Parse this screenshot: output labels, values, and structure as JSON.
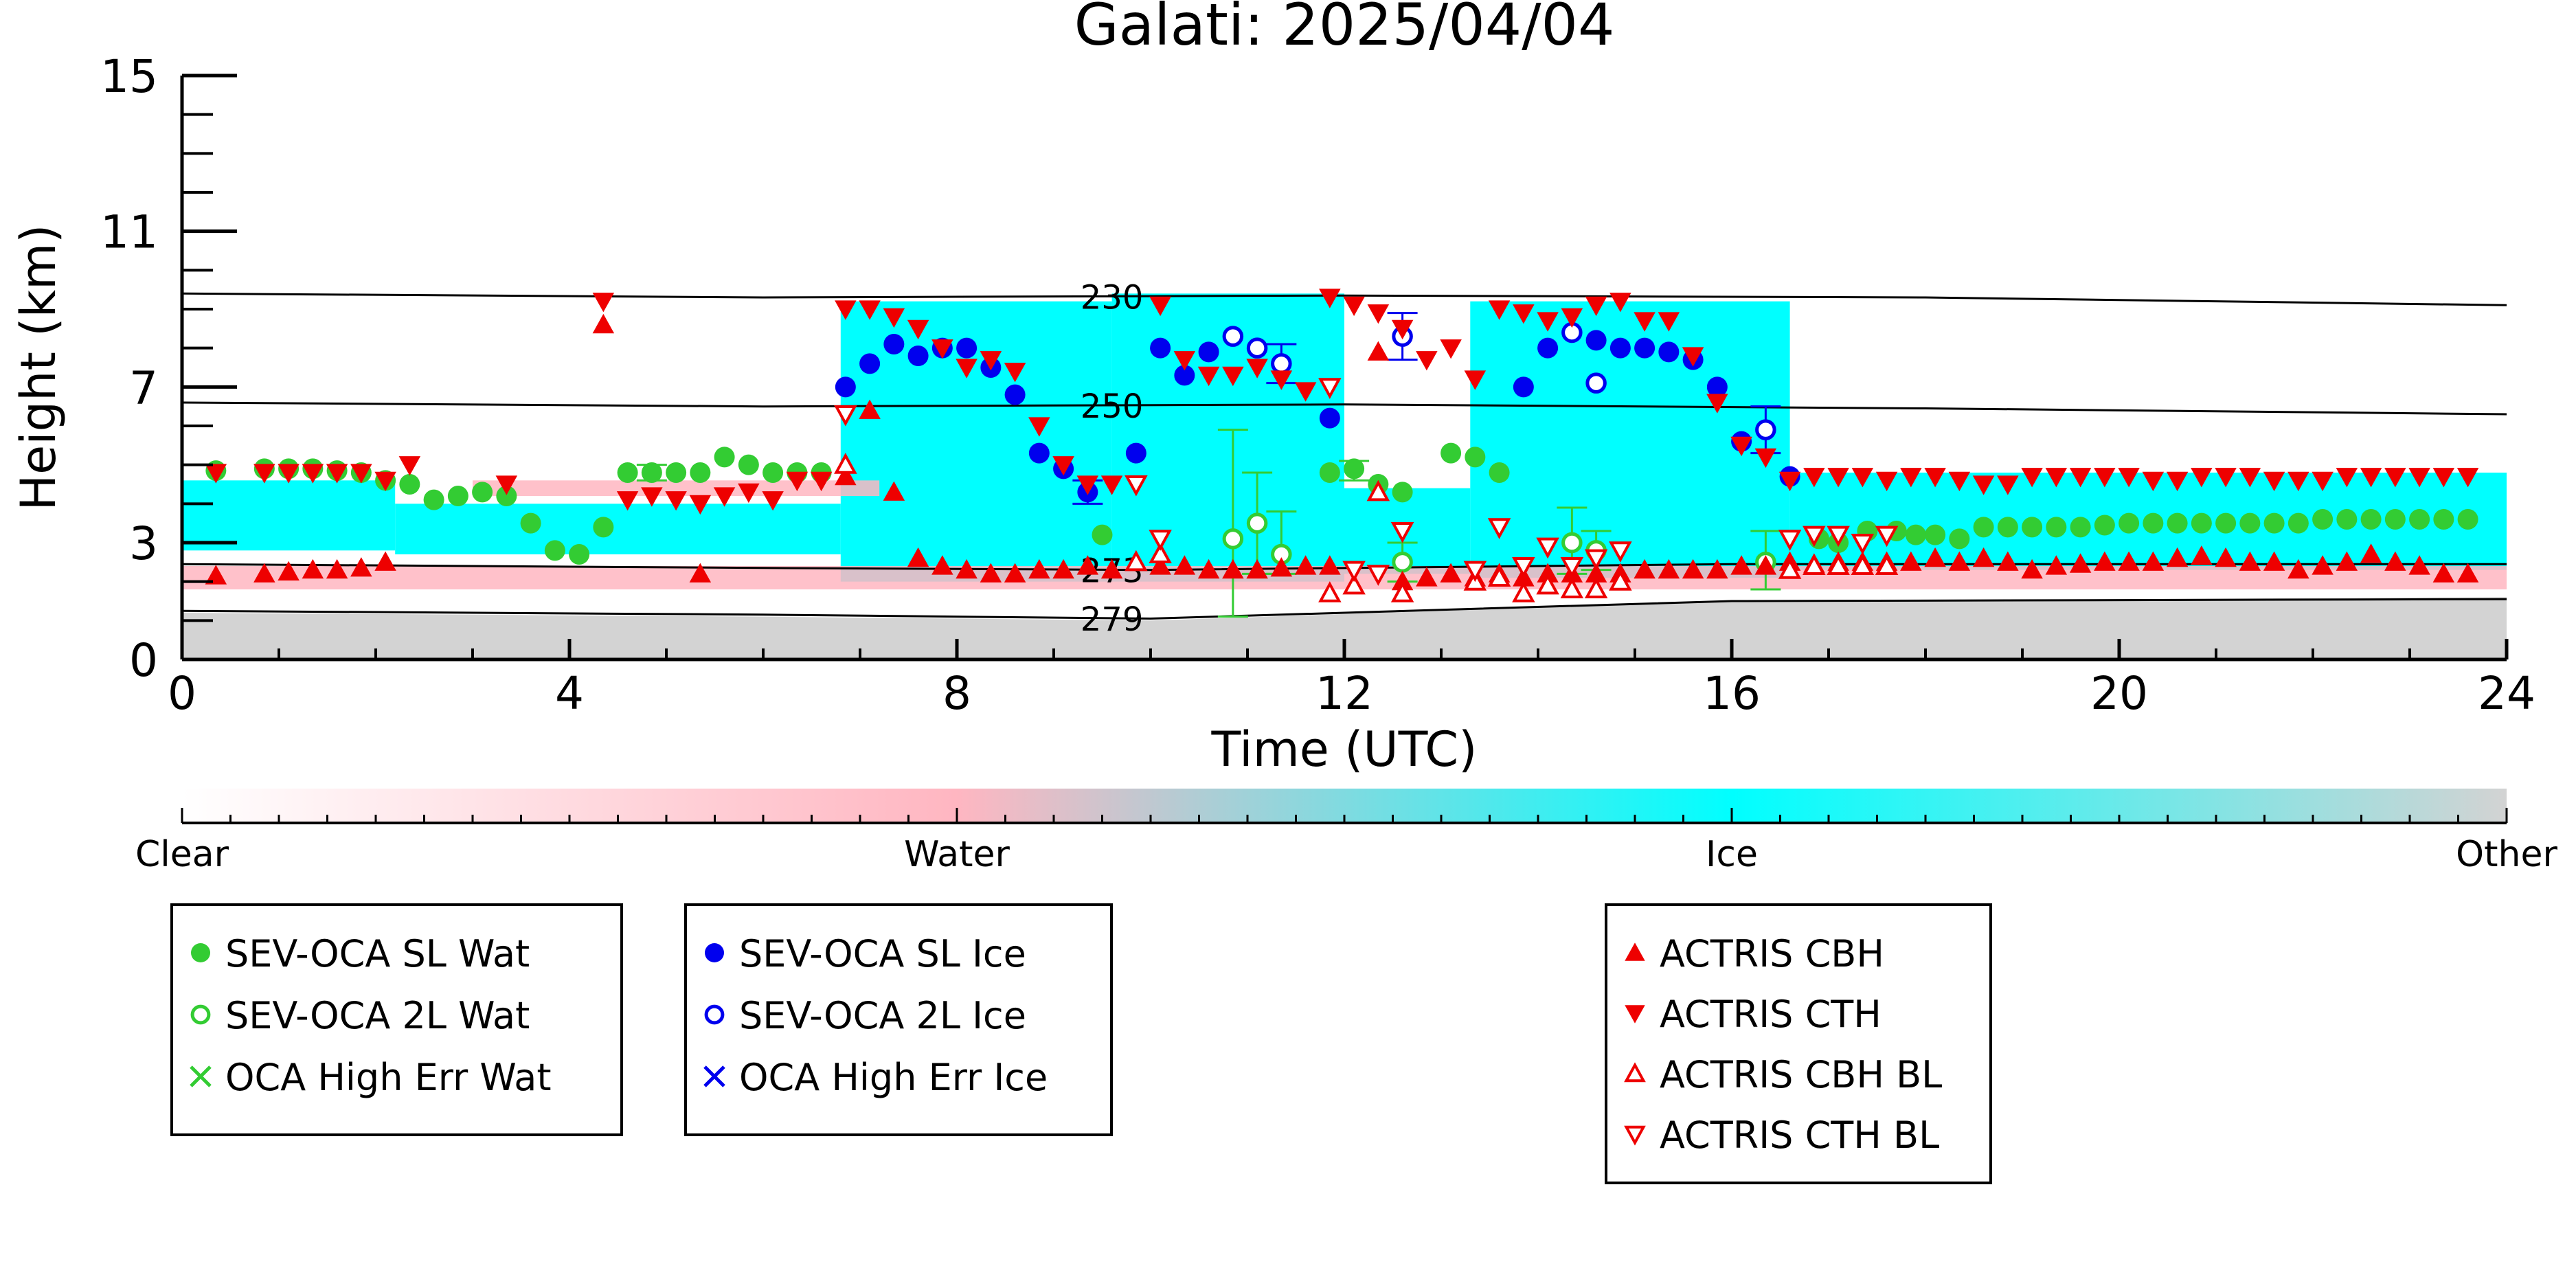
{
  "chart_data": {
    "type": "scatter",
    "title": "Galati: 2025/04/04",
    "xlabel": "Time (UTC)",
    "ylabel": "Height (km)",
    "xlim": [
      0,
      24
    ],
    "ylim": [
      0,
      15
    ],
    "x_ticks": [
      0,
      4,
      8,
      12,
      16,
      20,
      24
    ],
    "y_ticks": [
      0,
      3,
      7,
      11,
      15
    ],
    "grid": false,
    "background_classification": {
      "clear_color": "#ffffff",
      "water_color": "#ffb6c1",
      "ice_color": "#00ffff",
      "other_color": "#d3d3d3",
      "ground_top_km": [
        [
          0,
          1.2
        ],
        [
          6,
          1.1
        ],
        [
          10,
          1.0
        ],
        [
          16,
          1.5
        ],
        [
          24,
          1.6
        ]
      ],
      "ice_regions": [
        {
          "x": [
            0,
            2.2
          ],
          "bottom": 2.8,
          "top": 4.6
        },
        {
          "x": [
            2.2,
            6.8
          ],
          "bottom": 2.7,
          "top": 4.0
        },
        {
          "x": [
            6.8,
            9.6
          ],
          "bottom": 2.0,
          "top": 9.2
        },
        {
          "x": [
            9.6,
            12.0
          ],
          "bottom": 2.0,
          "top": 9.4
        },
        {
          "x": [
            12.0,
            13.3
          ],
          "bottom": 2.2,
          "top": 4.4
        },
        {
          "x": [
            13.3,
            16.6
          ],
          "bottom": 2.1,
          "top": 9.2
        },
        {
          "x": [
            16.6,
            24.0
          ],
          "bottom": 2.3,
          "top": 4.8
        }
      ],
      "water_regions": [
        {
          "x": [
            0,
            24
          ],
          "bottom": 1.8,
          "top": 2.4
        },
        {
          "x": [
            3.0,
            7.2
          ],
          "bottom": 4.2,
          "top": 4.6
        }
      ]
    },
    "contours": [
      {
        "label": "230",
        "x": [
          0,
          6,
          12,
          18,
          24
        ],
        "y": [
          9.4,
          9.3,
          9.35,
          9.3,
          9.1
        ]
      },
      {
        "label": "250",
        "x": [
          0,
          6,
          12,
          18,
          24
        ],
        "y": [
          6.6,
          6.5,
          6.55,
          6.45,
          6.3
        ]
      },
      {
        "label": "273",
        "x": [
          0,
          6,
          10,
          16,
          24
        ],
        "y": [
          2.45,
          2.35,
          2.3,
          2.45,
          2.45
        ]
      },
      {
        "label": "279",
        "x": [
          0,
          6,
          10,
          16,
          24
        ],
        "y": [
          1.25,
          1.15,
          1.05,
          1.5,
          1.55
        ]
      }
    ],
    "series": [
      {
        "name": "SEV-OCA SL Wat",
        "marker": "filled-circle",
        "color": "#33cc33",
        "x": [
          0.35,
          0.85,
          1.1,
          1.35,
          1.6,
          1.85,
          2.1,
          2.35,
          2.6,
          2.85,
          3.1,
          3.35,
          3.6,
          3.85,
          4.1,
          4.35,
          4.6,
          4.85,
          5.1,
          5.35,
          5.6,
          5.85,
          6.1,
          6.35,
          6.6,
          9.5,
          11.85,
          12.1,
          12.35,
          12.6,
          13.1,
          13.35,
          13.6,
          16.9,
          17.1,
          17.4,
          17.7,
          17.9,
          18.1,
          18.35,
          18.6,
          18.85,
          19.1,
          19.35,
          19.6,
          19.85,
          20.1,
          20.35,
          20.6,
          20.85,
          21.1,
          21.35,
          21.6,
          21.85,
          22.1,
          22.35,
          22.6,
          22.85,
          23.1,
          23.35,
          23.6
        ],
        "y": [
          4.85,
          4.9,
          4.9,
          4.9,
          4.85,
          4.8,
          4.6,
          4.5,
          4.1,
          4.2,
          4.3,
          4.2,
          3.5,
          2.8,
          2.7,
          3.4,
          4.8,
          4.8,
          4.8,
          4.8,
          5.2,
          5.0,
          4.8,
          4.8,
          4.8,
          3.2,
          4.8,
          4.9,
          4.5,
          4.3,
          5.3,
          5.2,
          4.8,
          3.1,
          3.0,
          3.3,
          3.3,
          3.2,
          3.2,
          3.1,
          3.4,
          3.4,
          3.4,
          3.4,
          3.4,
          3.45,
          3.5,
          3.5,
          3.5,
          3.5,
          3.5,
          3.5,
          3.5,
          3.5,
          3.6,
          3.6,
          3.6,
          3.6,
          3.6,
          3.6,
          3.6
        ],
        "errorbars": [
          {
            "x": 4.85,
            "lo": 4.6,
            "hi": 5.0
          },
          {
            "x": 12.1,
            "lo": 4.6,
            "hi": 5.1
          }
        ]
      },
      {
        "name": "SEV-OCA 2L Wat",
        "marker": "open-circle",
        "color": "#33cc33",
        "x": [
          10.85,
          11.1,
          11.35,
          12.6,
          14.35,
          14.6,
          16.35
        ],
        "y": [
          3.1,
          3.5,
          2.7,
          2.5,
          3.0,
          2.8,
          2.5
        ],
        "errorbars": [
          {
            "x": 10.85,
            "lo": 1.1,
            "hi": 5.9
          },
          {
            "x": 11.1,
            "lo": 2.2,
            "hi": 4.8
          },
          {
            "x": 11.35,
            "lo": 2.2,
            "hi": 3.8
          },
          {
            "x": 12.6,
            "lo": 2.0,
            "hi": 3.0
          },
          {
            "x": 14.35,
            "lo": 2.2,
            "hi": 3.9
          },
          {
            "x": 14.6,
            "lo": 2.3,
            "hi": 3.3
          },
          {
            "x": 16.35,
            "lo": 1.8,
            "hi": 3.3
          }
        ]
      },
      {
        "name": "OCA High Err Wat",
        "marker": "x",
        "color": "#33cc33",
        "x": [],
        "y": []
      },
      {
        "name": "SEV-OCA SL Ice",
        "marker": "filled-circle",
        "color": "#0000ee",
        "x": [
          6.85,
          7.1,
          7.35,
          7.6,
          7.85,
          8.1,
          8.35,
          8.6,
          8.85,
          9.1,
          9.35,
          9.85,
          10.1,
          10.35,
          10.6,
          11.85,
          13.85,
          14.1,
          14.6,
          14.85,
          15.1,
          15.35,
          15.6,
          15.85,
          16.1,
          16.6
        ],
        "y": [
          7.0,
          7.6,
          8.1,
          7.8,
          8.0,
          8.0,
          7.5,
          6.8,
          5.3,
          4.9,
          4.3,
          5.3,
          8.0,
          7.3,
          7.9,
          6.2,
          7.0,
          8.0,
          8.2,
          8.0,
          8.0,
          7.9,
          7.7,
          7.0,
          5.6,
          4.7
        ],
        "errorbars": [
          {
            "x": 9.35,
            "lo": 4.0,
            "hi": 4.6
          }
        ]
      },
      {
        "name": "SEV-OCA 2L Ice",
        "marker": "open-circle",
        "color": "#0000ee",
        "x": [
          10.85,
          11.1,
          11.35,
          12.6,
          14.35,
          14.6,
          16.35
        ],
        "y": [
          8.3,
          8.0,
          7.6,
          8.3,
          8.4,
          7.1,
          5.9
        ],
        "errorbars": [
          {
            "x": 11.35,
            "lo": 7.1,
            "hi": 8.1
          },
          {
            "x": 12.6,
            "lo": 7.7,
            "hi": 8.9
          },
          {
            "x": 16.35,
            "lo": 5.3,
            "hi": 6.5
          }
        ]
      },
      {
        "name": "OCA High Err Ice",
        "marker": "x",
        "color": "#0000ee",
        "x": [],
        "y": []
      },
      {
        "name": "ACTRIS CBH",
        "marker": "filled-triangle-up",
        "color": "#ee0000",
        "x": [
          0.35,
          0.85,
          1.1,
          1.35,
          1.6,
          1.85,
          2.1,
          4.35,
          5.35,
          6.85,
          7.1,
          7.35,
          7.6,
          7.85,
          8.1,
          8.35,
          8.6,
          8.85,
          9.1,
          9.35,
          9.6,
          10.1,
          10.35,
          10.6,
          10.85,
          11.1,
          11.35,
          11.6,
          11.85,
          12.35,
          12.6,
          12.85,
          13.1,
          13.35,
          13.6,
          13.85,
          14.1,
          14.35,
          14.6,
          14.85,
          15.1,
          15.35,
          15.6,
          15.85,
          16.1,
          16.35,
          16.6,
          16.85,
          17.1,
          17.35,
          17.6,
          17.85,
          18.1,
          18.35,
          18.6,
          18.85,
          19.1,
          19.35,
          19.6,
          19.85,
          20.1,
          20.35,
          20.6,
          20.85,
          21.1,
          21.35,
          21.6,
          21.85,
          22.1,
          22.35,
          22.6,
          22.85,
          23.1,
          23.35,
          23.6
        ],
        "y": [
          2.15,
          2.2,
          2.25,
          2.3,
          2.3,
          2.35,
          2.5,
          8.6,
          2.2,
          4.7,
          6.4,
          4.3,
          2.6,
          2.4,
          2.3,
          2.2,
          2.2,
          2.3,
          2.3,
          2.4,
          2.3,
          2.4,
          2.4,
          2.3,
          2.3,
          2.3,
          2.35,
          2.4,
          2.4,
          7.9,
          2.0,
          2.1,
          2.2,
          2.1,
          2.2,
          2.1,
          2.2,
          2.2,
          2.2,
          2.2,
          2.3,
          2.3,
          2.3,
          2.3,
          2.4,
          2.4,
          2.5,
          2.45,
          2.5,
          2.5,
          2.5,
          2.5,
          2.6,
          2.5,
          2.6,
          2.5,
          2.3,
          2.4,
          2.45,
          2.5,
          2.5,
          2.5,
          2.6,
          2.65,
          2.6,
          2.5,
          2.5,
          2.3,
          2.4,
          2.5,
          2.7,
          2.5,
          2.4,
          2.2,
          2.2
        ]
      },
      {
        "name": "ACTRIS CTH",
        "marker": "filled-triangle-down",
        "color": "#ee0000",
        "x": [
          0.35,
          0.85,
          1.1,
          1.35,
          1.6,
          1.85,
          2.1,
          2.35,
          3.35,
          4.35,
          4.6,
          4.85,
          5.1,
          5.35,
          5.6,
          5.85,
          6.1,
          6.35,
          6.6,
          6.85,
          7.1,
          7.35,
          7.6,
          7.85,
          8.1,
          8.35,
          8.6,
          8.85,
          9.1,
          9.35,
          9.6,
          10.1,
          10.35,
          10.6,
          10.85,
          11.1,
          11.35,
          11.6,
          11.85,
          12.1,
          12.35,
          12.6,
          12.85,
          13.1,
          13.35,
          13.6,
          13.85,
          14.1,
          14.35,
          14.6,
          14.85,
          15.1,
          15.35,
          15.6,
          15.85,
          16.1,
          16.35,
          16.6,
          16.85,
          17.1,
          17.35,
          17.6,
          17.85,
          18.1,
          18.35,
          18.6,
          18.85,
          19.1,
          19.35,
          19.6,
          19.85,
          20.1,
          20.35,
          20.6,
          20.85,
          21.1,
          21.35,
          21.6,
          21.85,
          22.1,
          22.35,
          22.6,
          22.85,
          23.1,
          23.35,
          23.6
        ],
        "y": [
          4.8,
          4.8,
          4.8,
          4.8,
          4.8,
          4.8,
          4.6,
          5.0,
          4.5,
          9.2,
          4.1,
          4.2,
          4.1,
          4.0,
          4.2,
          4.3,
          4.1,
          4.6,
          4.6,
          9.0,
          9.0,
          8.8,
          8.5,
          8.0,
          7.5,
          7.7,
          7.4,
          6.0,
          5.0,
          4.5,
          4.5,
          9.1,
          7.7,
          7.3,
          7.3,
          7.5,
          7.2,
          6.9,
          9.3,
          9.1,
          8.9,
          8.5,
          7.7,
          8.0,
          7.2,
          9.0,
          8.9,
          8.7,
          8.8,
          9.1,
          9.2,
          8.7,
          8.7,
          7.8,
          6.6,
          5.5,
          5.2,
          4.6,
          4.7,
          4.7,
          4.7,
          4.6,
          4.7,
          4.7,
          4.6,
          4.5,
          4.5,
          4.7,
          4.7,
          4.7,
          4.7,
          4.7,
          4.6,
          4.6,
          4.7,
          4.7,
          4.7,
          4.6,
          4.6,
          4.6,
          4.7,
          4.7,
          4.7,
          4.7,
          4.7,
          4.7
        ]
      },
      {
        "name": "ACTRIS CBH BL",
        "marker": "open-triangle-up",
        "color": "#ee0000",
        "x": [
          6.85,
          9.85,
          10.1,
          11.85,
          12.1,
          12.35,
          12.6,
          13.35,
          13.6,
          13.85,
          14.1,
          14.35,
          14.6,
          14.85,
          16.6,
          16.85,
          17.1,
          17.35,
          17.6
        ],
        "y": [
          5.0,
          2.5,
          2.7,
          1.7,
          1.9,
          4.3,
          1.7,
          2.0,
          2.1,
          1.7,
          1.9,
          1.8,
          1.8,
          2.0,
          2.3,
          2.4,
          2.4,
          2.4,
          2.4
        ]
      },
      {
        "name": "ACTRIS CTH BL",
        "marker": "open-triangle-down",
        "color": "#ee0000",
        "x": [
          6.85,
          9.85,
          10.1,
          11.85,
          12.1,
          12.35,
          12.6,
          13.35,
          13.6,
          13.85,
          14.1,
          14.35,
          14.6,
          14.85,
          16.6,
          16.85,
          17.1,
          17.35,
          17.6
        ],
        "y": [
          6.3,
          4.5,
          3.1,
          7.0,
          2.3,
          2.2,
          3.3,
          2.3,
          3.4,
          2.4,
          2.9,
          2.4,
          2.6,
          2.8,
          3.1,
          3.2,
          3.2,
          3.0,
          3.2
        ]
      }
    ],
    "colorbar": {
      "labels": [
        "Clear",
        "Water",
        "Ice",
        "Other"
      ],
      "stops": [
        "#ffffff",
        "#ffb6c1",
        "#00ffff",
        "#d3d3d3"
      ]
    },
    "legends": [
      {
        "entries": [
          "SEV-OCA SL Wat",
          "SEV-OCA 2L Wat",
          "OCA High Err Wat"
        ]
      },
      {
        "entries": [
          "SEV-OCA SL Ice",
          "SEV-OCA 2L Ice",
          "OCA High Err Ice"
        ]
      },
      {
        "entries": [
          "ACTRIS CBH",
          "ACTRIS CTH",
          "ACTRIS CBH BL",
          "ACTRIS CTH BL"
        ]
      }
    ]
  }
}
